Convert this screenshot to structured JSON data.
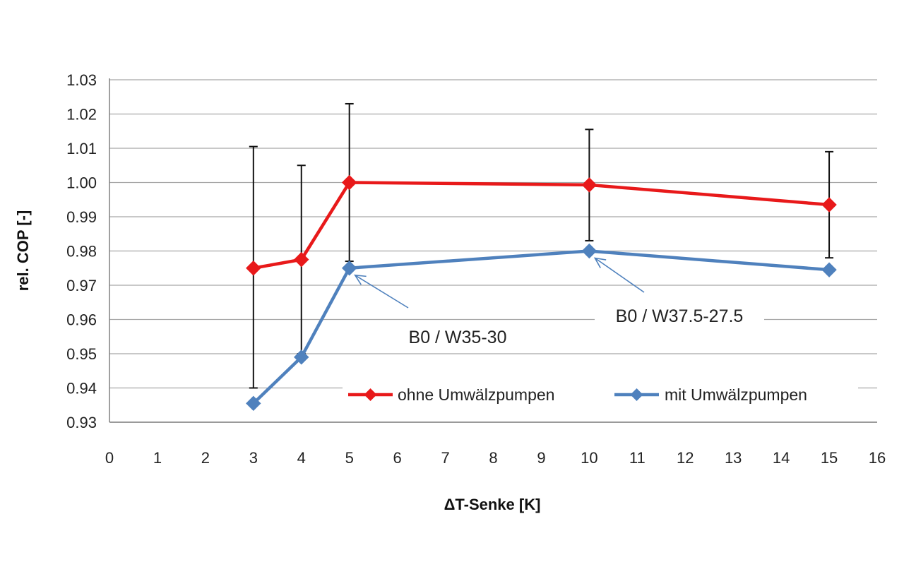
{
  "chart_data": {
    "type": "line",
    "xlabel": "ΔT-Senke [K]",
    "ylabel": "rel. COP [-]",
    "xlim": [
      0,
      16
    ],
    "ylim": [
      0.93,
      1.03
    ],
    "x_ticks": [
      "0",
      "1",
      "2",
      "3",
      "4",
      "5",
      "6",
      "7",
      "8",
      "9",
      "10",
      "11",
      "12",
      "13",
      "14",
      "15",
      "16"
    ],
    "y_ticks": [
      "0.93",
      "0.94",
      "0.95",
      "0.96",
      "0.97",
      "0.98",
      "0.99",
      "1.00",
      "1.01",
      "1.02",
      "1.03"
    ],
    "grid": "horizontal",
    "legend_position": "lower-right",
    "series": [
      {
        "name": "ohne Umwälzpumpen",
        "color": "#e8191a",
        "marker": "diamond",
        "points": [
          {
            "x": 3,
            "y": 0.975,
            "err_low": 0.94,
            "err_high": 1.0105
          },
          {
            "x": 4,
            "y": 0.9775,
            "err_low": 0.95,
            "err_high": 1.005
          },
          {
            "x": 5,
            "y": 1.0,
            "err_low": 0.977,
            "err_high": 1.023
          },
          {
            "x": 10,
            "y": 0.9993,
            "err_low": 0.983,
            "err_high": 1.0155
          },
          {
            "x": 15,
            "y": 0.9935,
            "err_low": 0.978,
            "err_high": 1.009
          }
        ]
      },
      {
        "name": "mit Umwälzpumpen",
        "color": "#4f81bd",
        "marker": "diamond",
        "points": [
          {
            "x": 3,
            "y": 0.9355
          },
          {
            "x": 4,
            "y": 0.949
          },
          {
            "x": 5,
            "y": 0.975
          },
          {
            "x": 10,
            "y": 0.98
          },
          {
            "x": 15,
            "y": 0.9745
          }
        ]
      }
    ],
    "annotations": [
      {
        "text": "B0 / W35-30",
        "target_x": 5,
        "target_y": 0.975
      },
      {
        "text": "B0 / W37.5-27.5",
        "target_x": 10,
        "target_y": 0.98
      }
    ]
  }
}
